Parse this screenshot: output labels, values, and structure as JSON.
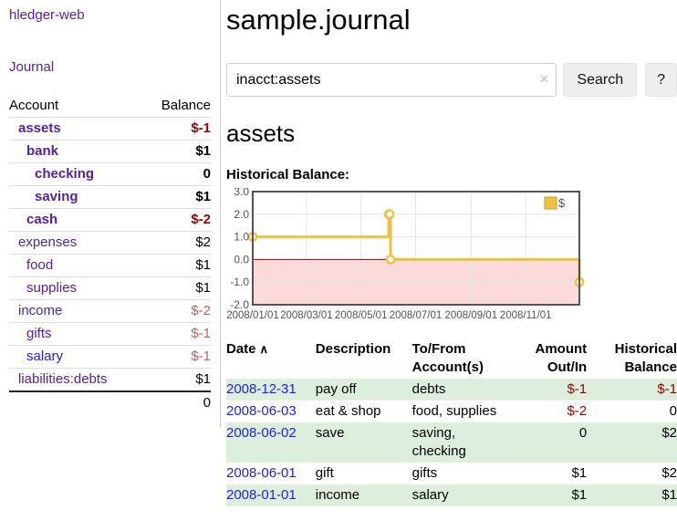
{
  "sidebar": {
    "brand": "hledger-web",
    "nav_label": "Journal",
    "accounts": {
      "headers": {
        "account": "Account",
        "balance": "Balance"
      },
      "rows": [
        {
          "name": "assets",
          "balance": "$-1",
          "level": 0,
          "bold": true,
          "link": "purple",
          "balance_style": "neg-strong"
        },
        {
          "name": "bank",
          "balance": "$1",
          "level": 1,
          "bold": true,
          "link": "purple",
          "balance_style": "normal"
        },
        {
          "name": "checking",
          "balance": "0",
          "level": 2,
          "bold": true,
          "link": "purple",
          "balance_style": "normal"
        },
        {
          "name": "saving",
          "balance": "$1",
          "level": 2,
          "bold": true,
          "link": "purple",
          "balance_style": "normal"
        },
        {
          "name": "cash",
          "balance": "$-2",
          "level": 1,
          "bold": true,
          "link": "purple",
          "balance_style": "neg-strong"
        },
        {
          "name": "expenses",
          "balance": "$2",
          "level": 0,
          "bold": false,
          "link": "purple",
          "balance_style": "normal"
        },
        {
          "name": "food",
          "balance": "$1",
          "level": 1,
          "bold": false,
          "link": "purple",
          "balance_style": "normal"
        },
        {
          "name": "supplies",
          "balance": "$1",
          "level": 1,
          "bold": false,
          "link": "purple",
          "balance_style": "normal"
        },
        {
          "name": "income",
          "balance": "$-2",
          "level": 0,
          "bold": false,
          "link": "purple",
          "balance_style": "neg-soft"
        },
        {
          "name": "gifts",
          "balance": "$-1",
          "level": 1,
          "bold": false,
          "link": "purple",
          "balance_style": "neg-soft"
        },
        {
          "name": "salary",
          "balance": "$-1",
          "level": 1,
          "bold": false,
          "link": "blue",
          "balance_style": "neg-soft"
        },
        {
          "name": "liabilities:debts",
          "balance": "$1",
          "level": 0,
          "bold": false,
          "link": "purple",
          "balance_style": "normal"
        }
      ],
      "total": "0"
    }
  },
  "main": {
    "title": "sample.journal",
    "search": {
      "value": "inacct:assets",
      "clear_icon": "×",
      "button_label": "Search",
      "help_label": "?"
    },
    "account_heading": "assets",
    "chart_heading": "Historical Balance:"
  },
  "chart_data": {
    "type": "line",
    "title": "Historical Balance:",
    "step": true,
    "legend": {
      "label": "$",
      "position": "top-right"
    },
    "series": [
      {
        "name": "$",
        "color": "#EDC240",
        "points": [
          {
            "date": "2008-01-01",
            "day": 0,
            "value": 1
          },
          {
            "date": "2008-06-01",
            "day": 152,
            "value": 2
          },
          {
            "date": "2008-06-02",
            "day": 153,
            "value": 2
          },
          {
            "date": "2008-06-03",
            "day": 154,
            "value": 0
          },
          {
            "date": "2008-12-31",
            "day": 365,
            "value": -1
          }
        ]
      }
    ],
    "x_ticks": [
      {
        "label": "2008/01/01",
        "day": 0
      },
      {
        "label": "2008/03/01",
        "day": 60
      },
      {
        "label": "2008/05/01",
        "day": 121
      },
      {
        "label": "2008/07/01",
        "day": 182
      },
      {
        "label": "2008/09/01",
        "day": 244
      },
      {
        "label": "2008/11/01",
        "day": 305
      }
    ],
    "y_ticks": [
      "3.0",
      "2.0",
      "1.0",
      "0.0",
      "-1.0",
      "-2.0"
    ],
    "ylim": [
      -2,
      3
    ],
    "xlim_days": [
      0,
      365
    ],
    "grid": true,
    "negative_region_color": "#fbdada",
    "zero_line_color": "#990000",
    "border_color": "#545454",
    "gridline_color": "#e6e6e6"
  },
  "transactions": {
    "headers": {
      "date": "Date",
      "sort_icon": "∧",
      "description": "Description",
      "accounts": "To/From Account(s)",
      "amount": "Amount Out/In",
      "balance": "Historical Balance"
    },
    "rows": [
      {
        "date": "2008-12-31",
        "description": "pay off",
        "accounts": "debts",
        "amount": "$-1",
        "amount_negative": true,
        "balance": "$-1",
        "balance_negative": true,
        "striped": true
      },
      {
        "date": "2008-06-03",
        "description": "eat & shop",
        "accounts": "food, supplies",
        "amount": "$-2",
        "amount_negative": true,
        "balance": "0",
        "balance_negative": false,
        "striped": false
      },
      {
        "date": "2008-06-02",
        "description": "save",
        "accounts": "saving, checking",
        "amount": "0",
        "amount_negative": false,
        "balance": "$2",
        "balance_negative": false,
        "striped": true
      },
      {
        "date": "2008-06-01",
        "description": "gift",
        "accounts": "gifts",
        "amount": "$1",
        "amount_negative": false,
        "balance": "$2",
        "balance_negative": false,
        "striped": false
      },
      {
        "date": "2008-01-01",
        "description": "income",
        "accounts": "salary",
        "amount": "$1",
        "amount_negative": false,
        "balance": "$1",
        "balance_negative": false,
        "striped": true
      }
    ]
  },
  "colors": {
    "link_purple": "#552299",
    "link_blue": "#2222dd",
    "negative_strong": "#990000",
    "negative_soft": "#c0605f",
    "stripe_green": "#ddeedd",
    "series_gold": "#EDC240"
  }
}
